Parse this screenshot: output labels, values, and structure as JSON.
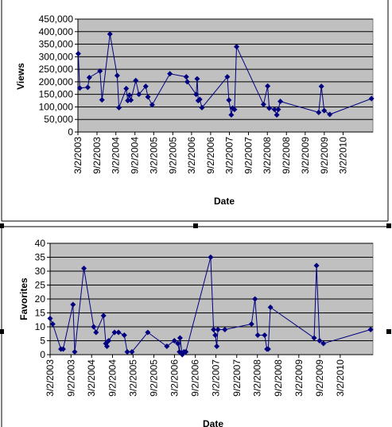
{
  "chart_data": [
    {
      "type": "line",
      "xlabel": "Date",
      "ylabel": "Views",
      "ylim": [
        0,
        450000
      ],
      "yticks": [
        "0",
        "50,000",
        "100,000",
        "150,000",
        "200,000",
        "250,000",
        "300,000",
        "350,000",
        "400,000",
        "450,000"
      ],
      "xlim": [
        "2003-03-02",
        "2010-12-15"
      ],
      "xticks": [
        "3/2/2003",
        "9/2/2003",
        "3/2/2004",
        "9/2/2004",
        "3/2/2005",
        "9/2/2005",
        "3/2/2006",
        "9/2/2006",
        "3/2/2007",
        "9/2/2007",
        "3/2/2008",
        "9/2/2008",
        "3/2/2009",
        "9/2/2009",
        "3/2/2010"
      ],
      "grid": true,
      "plot_background": "#C0C0C0",
      "series_color": "#000080",
      "marker": "diamond",
      "points": [
        [
          "2003-03-05",
          312000
        ],
        [
          "2003-03-20",
          175000
        ],
        [
          "2003-06-05",
          178000
        ],
        [
          "2003-06-20",
          217000
        ],
        [
          "2003-10-01",
          243000
        ],
        [
          "2003-10-20",
          128000
        ],
        [
          "2004-01-05",
          390000
        ],
        [
          "2004-03-15",
          225000
        ],
        [
          "2004-04-01",
          97000
        ],
        [
          "2004-06-10",
          173000
        ],
        [
          "2004-06-25",
          125000
        ],
        [
          "2004-07-10",
          147000
        ],
        [
          "2004-07-25",
          127000
        ],
        [
          "2004-09-10",
          205000
        ],
        [
          "2004-10-10",
          150000
        ],
        [
          "2004-12-15",
          182000
        ],
        [
          "2005-01-05",
          140000
        ],
        [
          "2005-02-15",
          108000
        ],
        [
          "2005-08-05",
          232000
        ],
        [
          "2006-01-10",
          220000
        ],
        [
          "2006-01-20",
          200000
        ],
        [
          "2006-04-15",
          150000
        ],
        [
          "2006-04-25",
          212000
        ],
        [
          "2006-05-05",
          125000
        ],
        [
          "2006-05-20",
          130000
        ],
        [
          "2006-06-10",
          97000
        ],
        [
          "2007-02-10",
          220000
        ],
        [
          "2007-02-25",
          127000
        ],
        [
          "2007-03-20",
          68000
        ],
        [
          "2007-04-01",
          95000
        ],
        [
          "2007-04-20",
          90000
        ],
        [
          "2007-05-10",
          340000
        ],
        [
          "2008-01-25",
          110000
        ],
        [
          "2008-03-05",
          183000
        ],
        [
          "2008-03-20",
          95000
        ],
        [
          "2008-05-10",
          90000
        ],
        [
          "2008-06-01",
          68000
        ],
        [
          "2008-06-15",
          90000
        ],
        [
          "2008-07-05",
          122000
        ],
        [
          "2009-07-10",
          78000
        ],
        [
          "2009-08-05",
          182000
        ],
        [
          "2009-09-01",
          85000
        ],
        [
          "2009-10-25",
          70000
        ],
        [
          "2010-12-01",
          133000
        ]
      ]
    },
    {
      "type": "line",
      "xlabel": "Date",
      "ylabel": "Favorites",
      "ylim": [
        0,
        40
      ],
      "yticks": [
        "0",
        "5",
        "10",
        "15",
        "20",
        "25",
        "30",
        "35",
        "40"
      ],
      "xlim": [
        "2003-03-02",
        "2010-12-15"
      ],
      "xticks": [
        "3/2/2003",
        "9/2/2003",
        "3/2/2004",
        "9/2/2004",
        "3/2/2005",
        "9/2/2005",
        "3/2/2006",
        "9/2/2006",
        "3/2/2007",
        "9/2/2007",
        "3/2/2008",
        "9/2/2008",
        "3/2/2009",
        "9/2/2009",
        "3/2/2010"
      ],
      "grid": true,
      "plot_background": "#C0C0C0",
      "series_color": "#000080",
      "marker": "diamond",
      "points": [
        [
          "2003-03-02",
          13
        ],
        [
          "2003-03-25",
          11
        ],
        [
          "2003-06-05",
          2
        ],
        [
          "2003-06-25",
          2
        ],
        [
          "2003-09-20",
          18
        ],
        [
          "2003-10-05",
          1
        ],
        [
          "2003-12-25",
          31
        ],
        [
          "2004-03-20",
          10
        ],
        [
          "2004-04-10",
          8
        ],
        [
          "2004-06-15",
          14
        ],
        [
          "2004-07-05",
          4
        ],
        [
          "2004-07-15",
          3
        ],
        [
          "2004-07-30",
          5
        ],
        [
          "2004-09-20",
          8
        ],
        [
          "2004-10-25",
          8
        ],
        [
          "2004-12-15",
          7
        ],
        [
          "2005-01-10",
          1
        ],
        [
          "2005-02-20",
          1
        ],
        [
          "2005-07-10",
          8
        ],
        [
          "2005-12-25",
          3
        ],
        [
          "2006-03-01",
          5
        ],
        [
          "2006-04-01",
          4
        ],
        [
          "2006-04-15",
          1
        ],
        [
          "2006-04-20",
          6
        ],
        [
          "2006-05-10",
          0
        ],
        [
          "2006-05-25",
          1
        ],
        [
          "2006-06-10",
          1
        ],
        [
          "2007-01-15",
          35
        ],
        [
          "2007-02-10",
          9
        ],
        [
          "2007-02-25",
          7
        ],
        [
          "2007-03-10",
          3
        ],
        [
          "2007-03-20",
          9
        ],
        [
          "2007-05-20",
          9
        ],
        [
          "2008-01-10",
          11
        ],
        [
          "2008-02-10",
          20
        ],
        [
          "2008-03-05",
          7
        ],
        [
          "2008-05-05",
          7
        ],
        [
          "2008-05-25",
          2
        ],
        [
          "2008-06-05",
          2
        ],
        [
          "2008-06-25",
          17
        ],
        [
          "2009-07-15",
          6
        ],
        [
          "2009-08-05",
          32
        ],
        [
          "2009-09-01",
          5
        ],
        [
          "2009-10-05",
          4
        ],
        [
          "2010-11-25",
          9
        ]
      ]
    }
  ]
}
